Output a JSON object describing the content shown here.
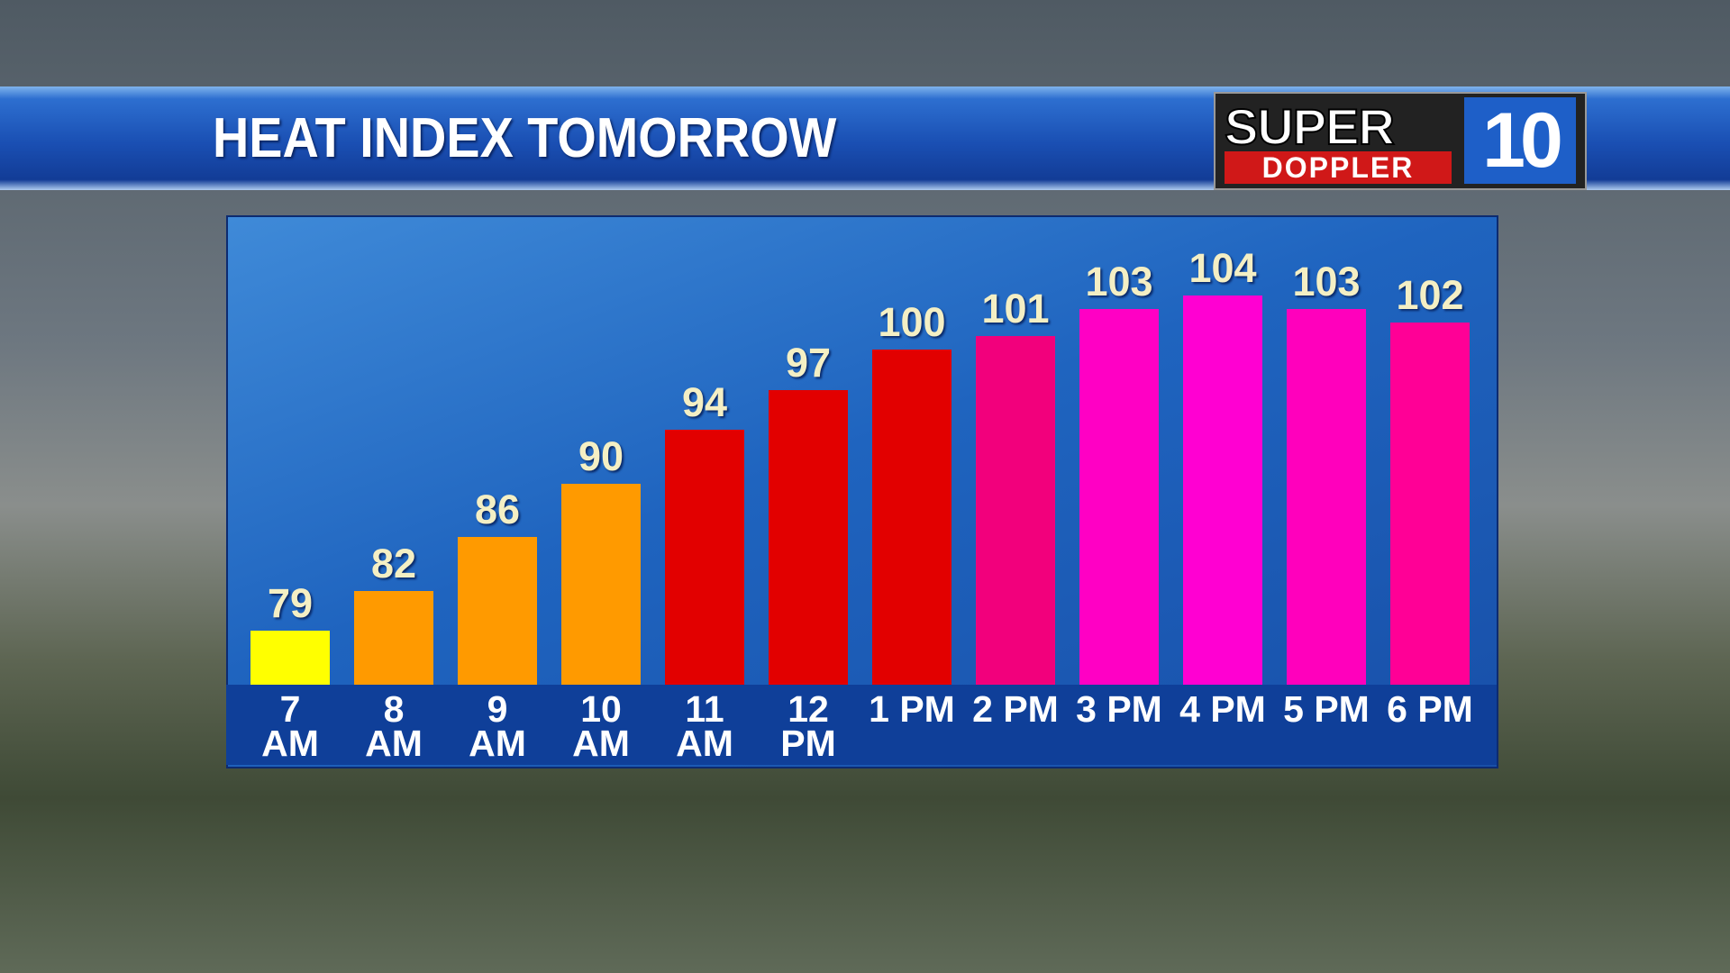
{
  "chart_data": {
    "type": "bar",
    "title": "HEAT INDEX TOMORROW",
    "categories": [
      "7 AM",
      "8 AM",
      "9 AM",
      "10 AM",
      "11 AM",
      "12 PM",
      "1 PM",
      "2 PM",
      "3 PM",
      "4 PM",
      "5 PM",
      "6 PM"
    ],
    "values": [
      79,
      82,
      86,
      90,
      94,
      97,
      100,
      101,
      103,
      104,
      103,
      102
    ],
    "colors": [
      "#ffff00",
      "#ff9a00",
      "#ff9a00",
      "#ff9a00",
      "#e20000",
      "#e20000",
      "#e20000",
      "#f2007c",
      "#ff00c4",
      "#ff00d2",
      "#ff00bc",
      "#ff0096"
    ],
    "ylim": [
      75,
      110
    ]
  },
  "logo": {
    "line1": "SUPER",
    "line2": "DOPPLER",
    "number": "10"
  }
}
